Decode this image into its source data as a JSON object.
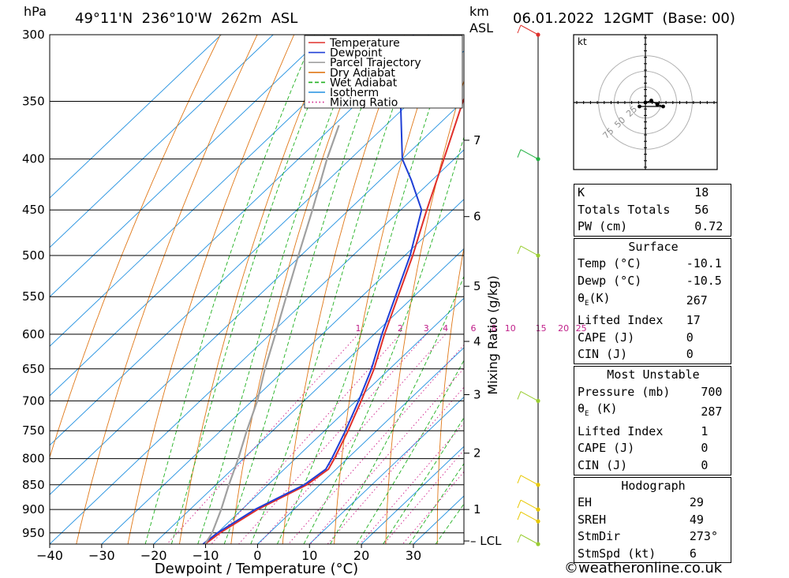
{
  "header": {
    "pressure_unit": "hPa",
    "location": "49°11'N  236°10'W  262m  ASL",
    "height_unit": "km",
    "height_unit2": "ASL",
    "datetime": "06.01.2022  12GMT  (Base: 00)"
  },
  "chart_data": {
    "type": "line",
    "subtype": "skew-T log-P diagram",
    "xlabel": "Dewpoint / Temperature (°C)",
    "ylabel": "",
    "x_ticks": [
      -40,
      -30,
      -20,
      -10,
      0,
      10,
      20,
      30
    ],
    "xlim": [
      -40,
      40
    ],
    "pressure_levels": [
      300,
      350,
      400,
      450,
      500,
      550,
      600,
      650,
      700,
      750,
      800,
      850,
      900,
      950
    ],
    "ylim": [
      975,
      300
    ],
    "y_log_scale": true,
    "km_ticks": [
      {
        "label": "7",
        "p": 383
      },
      {
        "label": "6",
        "p": 457
      },
      {
        "label": "5",
        "p": 537
      },
      {
        "label": "4",
        "p": 610
      },
      {
        "label": "3",
        "p": 690
      },
      {
        "label": "2",
        "p": 790
      },
      {
        "label": "1",
        "p": 900
      },
      {
        "label": "LCL",
        "p": 968
      }
    ],
    "mixing_ratio_label": "Mixing Ratio (g/kg)",
    "mixing_ratio_values": [
      "1",
      "2",
      "3",
      "4",
      "6",
      "8",
      "10",
      "15",
      "20",
      "25"
    ],
    "legend": [
      {
        "name": "Temperature",
        "color": "#e0302b",
        "style": "solid"
      },
      {
        "name": "Dewpoint",
        "color": "#1f3fd6",
        "style": "solid"
      },
      {
        "name": "Parcel Trajectory",
        "color": "#a0a0a0",
        "style": "solid"
      },
      {
        "name": "Dry Adiabat",
        "color": "#e07818",
        "style": "solid"
      },
      {
        "name": "Wet Adiabat",
        "color": "#20b020",
        "style": "dashed"
      },
      {
        "name": "Isotherm",
        "color": "#2090e0",
        "style": "solid"
      },
      {
        "name": "Mixing Ratio",
        "color": "#d0208a",
        "style": "dotted"
      }
    ],
    "legend_position": "top-right",
    "series": [
      {
        "name": "Temperature",
        "color": "#e0302b",
        "points": [
          [
            975,
            -10.1
          ],
          [
            950,
            -9.5
          ],
          [
            900,
            -7.0
          ],
          [
            850,
            -2.5
          ],
          [
            820,
            -1.5
          ],
          [
            800,
            -2.5
          ],
          [
            750,
            -5.5
          ],
          [
            700,
            -9.0
          ],
          [
            650,
            -13.0
          ],
          [
            600,
            -18.0
          ],
          [
            550,
            -23.0
          ],
          [
            500,
            -28.5
          ],
          [
            450,
            -35.0
          ],
          [
            400,
            -42.0
          ],
          [
            350,
            -50.0
          ],
          [
            300,
            -57.0
          ]
        ]
      },
      {
        "name": "Dewpoint",
        "color": "#1f3fd6",
        "points": [
          [
            975,
            -10.5
          ],
          [
            950,
            -10.0
          ],
          [
            900,
            -7.5
          ],
          [
            850,
            -3.0
          ],
          [
            820,
            -2.0
          ],
          [
            800,
            -3.0
          ],
          [
            750,
            -6.0
          ],
          [
            700,
            -9.5
          ],
          [
            650,
            -13.5
          ],
          [
            600,
            -18.5
          ],
          [
            550,
            -23.5
          ],
          [
            500,
            -29.0
          ],
          [
            450,
            -36.0
          ],
          [
            420,
            -44.0
          ],
          [
            400,
            -50.0
          ],
          [
            350,
            -62.0
          ],
          [
            300,
            -73.0
          ]
        ]
      },
      {
        "name": "Parcel Trajectory",
        "color": "#a0a0a0",
        "points": [
          [
            975,
            -10.1
          ],
          [
            950,
            -11.0
          ],
          [
            900,
            -14.0
          ],
          [
            850,
            -17.5
          ],
          [
            800,
            -21.0
          ],
          [
            750,
            -25.0
          ],
          [
            700,
            -29.0
          ],
          [
            650,
            -34.0
          ],
          [
            600,
            -39.0
          ],
          [
            550,
            -44.5
          ],
          [
            500,
            -50.5
          ],
          [
            450,
            -57.0
          ],
          [
            400,
            -64.5
          ],
          [
            370,
            -69.0
          ]
        ]
      }
    ],
    "isotherms_c": [
      -110,
      -100,
      -90,
      -80,
      -70,
      -60,
      -50,
      -40,
      -30,
      -20,
      -10,
      0,
      10,
      20,
      30,
      40
    ],
    "dry_adiabats_thetaK": [
      230,
      240,
      250,
      260,
      270,
      280,
      290,
      300,
      310,
      320,
      330,
      340,
      350,
      360,
      370,
      380,
      390,
      400,
      410,
      420,
      430
    ],
    "wet_adiabats_c": [
      -20,
      -15,
      -10,
      -5,
      0,
      5,
      10,
      15,
      20,
      25,
      30,
      35
    ]
  },
  "hodograph": {
    "unit": "kt",
    "ring_labels": [
      "25",
      "50",
      "75"
    ],
    "points": [
      [
        0,
        0
      ],
      [
        3,
        1
      ],
      [
        6,
        -1
      ],
      [
        9,
        -2
      ],
      [
        -3,
        -2
      ]
    ]
  },
  "indices": {
    "k_label": "K",
    "k_value": "18",
    "tt_label": "Totals Totals",
    "tt_value": "56",
    "pw_label": "PW (cm)",
    "pw_value": "0.72",
    "surface": {
      "title": "Surface",
      "temp_label": "Temp (°C)",
      "temp_value": "-10.1",
      "dewp_label": "Dewp (°C)",
      "dewp_value": "-10.5",
      "theta_label": "θ",
      "theta_sub": "E",
      "theta_unit": "(K)",
      "theta_value": "267",
      "li_label": "Lifted Index",
      "li_value": "17",
      "cape_label": "CAPE (J)",
      "cape_value": "0",
      "cin_label": "CIN (J)",
      "cin_value": "0"
    },
    "most_unstable": {
      "title": "Most Unstable",
      "pressure_label": "Pressure (mb)",
      "pressure_value": "700",
      "theta_label": "θ",
      "theta_sub": "E",
      "theta_unit": "(K)",
      "theta_value": "287",
      "li_label": "Lifted Index",
      "li_value": "1",
      "cape_label": "CAPE (J)",
      "cape_value": "0",
      "cin_label": "CIN (J)",
      "cin_value": "0"
    },
    "hodograph_box": {
      "title": "Hodograph",
      "eh_label": "EH",
      "eh_value": "29",
      "sreh_label": "SREH",
      "sreh_value": "49",
      "stmdir_label": "StmDir",
      "stmdir_value": "273°",
      "stmspd_label": "StmSpd (kt)",
      "stmspd_value": "6"
    }
  },
  "wind_barbs": [
    {
      "p": 300,
      "color": "#e0302b"
    },
    {
      "p": 400,
      "color": "#20b040"
    },
    {
      "p": 500,
      "color": "#9acd32"
    },
    {
      "p": 700,
      "color": "#9acd32"
    },
    {
      "p": 850,
      "color": "#e8c800"
    },
    {
      "p": 900,
      "color": "#e8c800"
    },
    {
      "p": 925,
      "color": "#e8c800"
    },
    {
      "p": 975,
      "color": "#9acd32"
    }
  ],
  "footer": {
    "copyright_symbol": "©",
    "site": "weatheronline.co.uk"
  }
}
